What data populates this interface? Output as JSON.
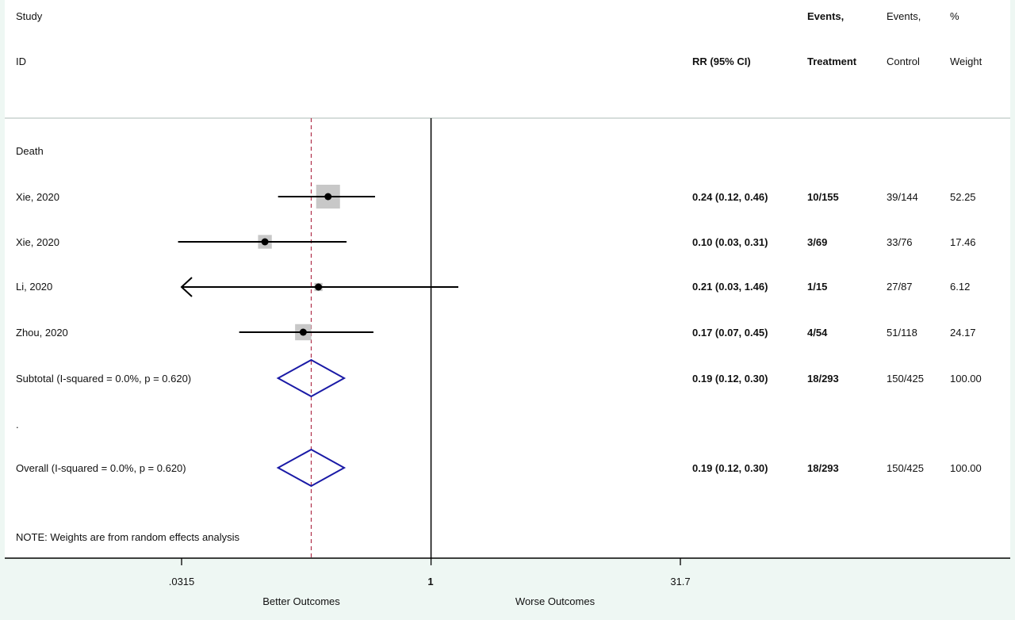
{
  "header": {
    "study_line1": "Study",
    "study_line2": "ID",
    "rr_label": "RR (95% CI)",
    "events_treat_line1": "Events,",
    "events_treat_line2": "Treatment",
    "events_ctrl_line1": "Events,",
    "events_ctrl_line2": "Control",
    "weight_line1": "%",
    "weight_line2": "Weight"
  },
  "subgroup_label": "Death",
  "separator_dot": ".",
  "note": "NOTE: Weights are from random effects analysis",
  "axis": {
    "ticks": [
      ".0315",
      "1",
      "31.7"
    ],
    "left_label": "Better Outcomes",
    "right_label": "Worse Outcomes"
  },
  "chart_data": {
    "type": "forest",
    "scale": "log",
    "xlim": [
      0.0315,
      31.7
    ],
    "null_line": 1,
    "reference_line": 0.19,
    "studies": [
      {
        "label": "Xie, 2020",
        "rr": 0.24,
        "lo": 0.12,
        "hi": 0.46,
        "ci_text": "0.24 (0.12, 0.46)",
        "events_treatment": "10/155",
        "events_control": "39/144",
        "weight": "52.25",
        "weight_value": 52.25,
        "arrow_left": false
      },
      {
        "label": "Xie, 2020",
        "rr": 0.1,
        "lo": 0.03,
        "hi": 0.31,
        "ci_text": "0.10 (0.03, 0.31)",
        "events_treatment": "3/69",
        "events_control": "33/76",
        "weight": "17.46",
        "weight_value": 17.46,
        "arrow_left": false
      },
      {
        "label": "Li, 2020",
        "rr": 0.21,
        "lo": 0.03,
        "hi": 1.46,
        "ci_text": "0.21 (0.03, 1.46)",
        "events_treatment": "1/15",
        "events_control": "27/87",
        "weight": "6.12",
        "weight_value": 6.12,
        "arrow_left": true
      },
      {
        "label": "Zhou, 2020",
        "rr": 0.17,
        "lo": 0.07,
        "hi": 0.45,
        "ci_text": "0.17 (0.07, 0.45)",
        "events_treatment": "4/54",
        "events_control": "51/118",
        "weight": "24.17",
        "weight_value": 24.17,
        "arrow_left": false
      }
    ],
    "subtotal": {
      "label": "Subtotal  (I-squared = 0.0%, p = 0.620)",
      "rr": 0.19,
      "lo": 0.12,
      "hi": 0.3,
      "ci_text": "0.19 (0.12, 0.30)",
      "events_treatment": "18/293",
      "events_control": "150/425",
      "weight": "100.00"
    },
    "overall": {
      "label": "Overall  (I-squared = 0.0%, p = 0.620)",
      "rr": 0.19,
      "lo": 0.12,
      "hi": 0.3,
      "ci_text": "0.19 (0.12, 0.30)",
      "events_treatment": "18/293",
      "events_control": "150/425",
      "weight": "100.00"
    }
  },
  "colors": {
    "diamond": "#1a1aa6",
    "reference_line": "#b0304a",
    "weight_box": "#c8c8c8",
    "background": "#eef7f3"
  }
}
